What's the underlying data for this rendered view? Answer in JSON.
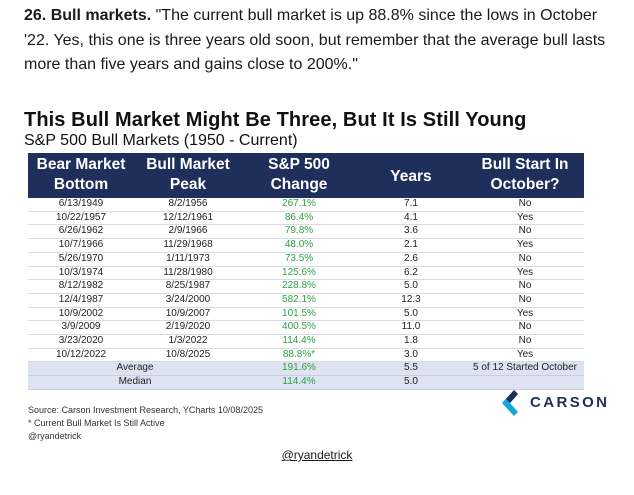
{
  "intro": {
    "number": "26. Bull markets.",
    "quote": "\"The current bull market is up 88.8% since the lows in October '22. Yes, this one is three years old soon, but remember that the average bull lasts more than five years and gains close to 200%.\""
  },
  "chart": {
    "title": "This Bull Market Might Be Three, But It Is Still Young",
    "subtitle": "S&P 500 Bull Markets (1950 - Current)"
  },
  "table": {
    "headers": {
      "col1_l1": "Bear Market",
      "col1_l2": "Bottom",
      "col2_l1": "Bull Market",
      "col2_l2": "Peak",
      "col3_l1": "S&P 500",
      "col3_l2": "Change",
      "col4": "Years",
      "col5_l1": "Bull Start In",
      "col5_l2": "October?"
    },
    "rows": [
      [
        "6/13/1949",
        "8/2/1956",
        "267.1%",
        "7.1",
        "No"
      ],
      [
        "10/22/1957",
        "12/12/1961",
        "86.4%",
        "4.1",
        "Yes"
      ],
      [
        "6/26/1962",
        "2/9/1966",
        "79.8%",
        "3.6",
        "No"
      ],
      [
        "10/7/1966",
        "11/29/1968",
        "48.0%",
        "2.1",
        "Yes"
      ],
      [
        "5/26/1970",
        "1/11/1973",
        "73.5%",
        "2.6",
        "No"
      ],
      [
        "10/3/1974",
        "11/28/1980",
        "125.6%",
        "6.2",
        "Yes"
      ],
      [
        "8/12/1982",
        "8/25/1987",
        "228.8%",
        "5.0",
        "No"
      ],
      [
        "12/4/1987",
        "3/24/2000",
        "582.1%",
        "12.3",
        "No"
      ],
      [
        "10/9/2002",
        "10/9/2007",
        "101.5%",
        "5.0",
        "Yes"
      ],
      [
        "3/9/2009",
        "2/19/2020",
        "400.5%",
        "11.0",
        "No"
      ],
      [
        "3/23/2020",
        "1/3/2022",
        "114.4%",
        "1.8",
        "No"
      ],
      [
        "10/12/2022",
        "10/8/2025",
        "88.8%*",
        "3.0",
        "Yes"
      ]
    ],
    "average": {
      "label": "Average",
      "change": "191.6%",
      "years": "5.5",
      "october": "5 of 12 Started October"
    },
    "median": {
      "label": "Median",
      "change": "114.4%",
      "years": "5.0"
    }
  },
  "footer": {
    "source": "Source: Carson Investment Research, YCharts 10/08/2025",
    "note": "* Current Bull Market Is Still Active",
    "handle": "@ryandetrick"
  },
  "logo": {
    "text": "CARSON"
  },
  "bottom_handle": "@ryandetrick",
  "colors": {
    "header_bg": "#1e2f5b",
    "positive": "#2ea043",
    "stat_bg": "#dde3f0",
    "logo_cyan": "#14a6d9"
  }
}
